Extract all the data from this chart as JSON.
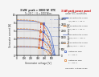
{
  "background_color": "#f5f5f5",
  "plot_bg": "#e8e8e8",
  "voc_max": 600,
  "isc_max": 10.0,
  "pmax_stc": 3300,
  "xlabel": "Generator voltage [V]",
  "ylabel_left": "Generator current [A]",
  "ylabel_right": "Generator power [W]",
  "iv_curves_T25": [
    {
      "G": 1000,
      "Isc": 8.55,
      "Voc": 545,
      "Imp": 7.95,
      "Vmp": 385,
      "color": "#3355bb"
    },
    {
      "G": 750,
      "Isc": 6.41,
      "Voc": 535,
      "Imp": 5.96,
      "Vmp": 378,
      "color": "#3355bb"
    },
    {
      "G": 500,
      "Isc": 4.27,
      "Voc": 522,
      "Imp": 3.97,
      "Vmp": 370,
      "color": "#3355bb"
    },
    {
      "G": 250,
      "Isc": 2.14,
      "Voc": 505,
      "Imp": 1.99,
      "Vmp": 358,
      "color": "#3355bb"
    }
  ],
  "iv_curves_T50": [
    {
      "G": 1000,
      "Isc": 8.75,
      "Voc": 497,
      "Imp": 7.95,
      "Vmp": 342,
      "color": "#dd7722"
    },
    {
      "G": 750,
      "Isc": 6.56,
      "Voc": 487,
      "Imp": 5.96,
      "Vmp": 335,
      "color": "#dd7722"
    },
    {
      "G": 500,
      "Isc": 4.37,
      "Voc": 474,
      "Imp": 3.97,
      "Vmp": 326,
      "color": "#dd7722"
    },
    {
      "G": 250,
      "Isc": 2.19,
      "Voc": 457,
      "Imp": 1.99,
      "Vmp": 312,
      "color": "#dd7722"
    }
  ],
  "mpp_T25": [
    [
      385,
      7.95
    ],
    [
      378,
      5.96
    ],
    [
      370,
      3.97
    ],
    [
      358,
      1.99
    ]
  ],
  "mpp_T50": [
    [
      342,
      7.95
    ],
    [
      335,
      5.96
    ],
    [
      326,
      3.97
    ],
    [
      312,
      1.99
    ]
  ],
  "color_T25": "#3355bb",
  "color_T50": "#dd7722",
  "color_mpp": "#cc0000",
  "header_bg": "#ffeecc",
  "header_text1": "3 kW  peak = 3000 W  STC",
  "header_text2": "T = 25°C  /  G = 1000 W/m²",
  "legend_box_color": "#ffeeee",
  "grid_color": "#bbbbbb",
  "xticks": [
    0,
    100,
    200,
    300,
    400,
    500
  ],
  "yticks_left": [
    0,
    2,
    4,
    6,
    8,
    10
  ],
  "yticks_right": [
    0,
    500,
    1000,
    1500,
    2000,
    2500,
    3000
  ],
  "G_labels": [
    "G = 1000 W/m²",
    "G = 750 W/m²",
    "G = 500 W/m²",
    "G = 250 W/m²"
  ],
  "legend_lines": [
    "Characteristic curve I(U) for",
    "T = 25°C (solid blue)",
    "Characteristic curve I(U) for",
    "T = 50°C (dashed orange)",
    "Optimum MPP",
    "T = 25°C",
    "Optimum MPP",
    "T = 50°C"
  ]
}
